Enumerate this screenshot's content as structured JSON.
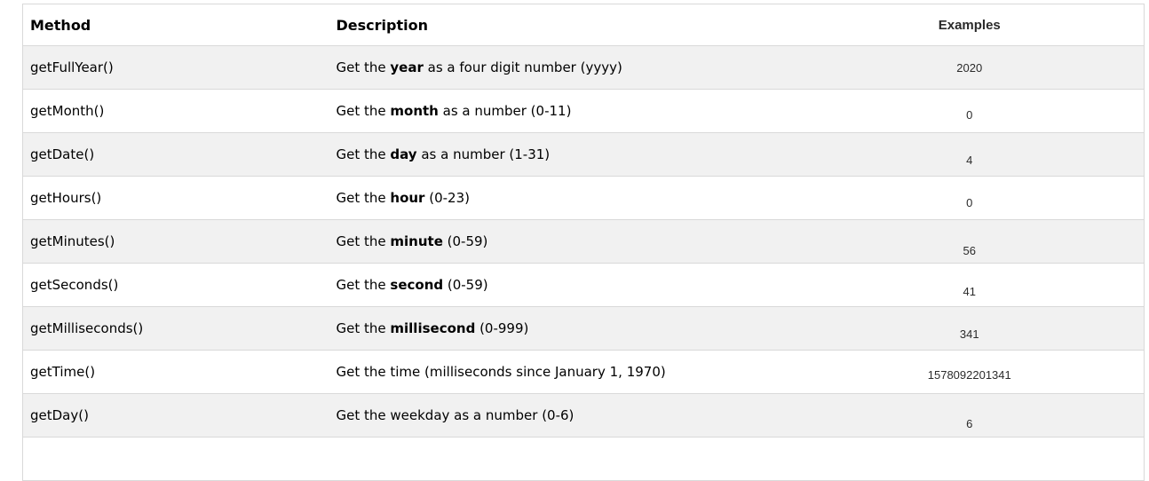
{
  "table": {
    "headers": {
      "method": "Method",
      "description": "Description",
      "examples": "Examples"
    },
    "rows": [
      {
        "method": "getFullYear()",
        "desc_before": "Get the ",
        "desc_bold": "year",
        "desc_after": " as a four digit number (yyyy)",
        "example": "2020"
      },
      {
        "method": "getMonth()",
        "desc_before": "Get the ",
        "desc_bold": "month",
        "desc_after": " as a number (0-11)",
        "example": "0"
      },
      {
        "method": "getDate()",
        "desc_before": "Get the ",
        "desc_bold": "day",
        "desc_after": " as a number (1-31)",
        "example": "4"
      },
      {
        "method": "getHours()",
        "desc_before": "Get the ",
        "desc_bold": "hour",
        "desc_after": " (0-23)",
        "example": "0"
      },
      {
        "method": "getMinutes()",
        "desc_before": "Get the ",
        "desc_bold": "minute",
        "desc_after": " (0-59)",
        "example": "56"
      },
      {
        "method": "getSeconds()",
        "desc_before": "Get the ",
        "desc_bold": "second",
        "desc_after": " (0-59)",
        "example": "41"
      },
      {
        "method": "getMilliseconds()",
        "desc_before": "Get the ",
        "desc_bold": "millisecond",
        "desc_after": " (0-999)",
        "example": "341"
      },
      {
        "method": "getTime()",
        "desc_before": "Get the time (milliseconds since January 1, 1970)",
        "desc_bold": "",
        "desc_after": "",
        "example": "1578092201341"
      },
      {
        "method": "getDay()",
        "desc_before": "Get the weekday as a number (0-6)",
        "desc_bold": "",
        "desc_after": "",
        "example": "6"
      }
    ]
  }
}
